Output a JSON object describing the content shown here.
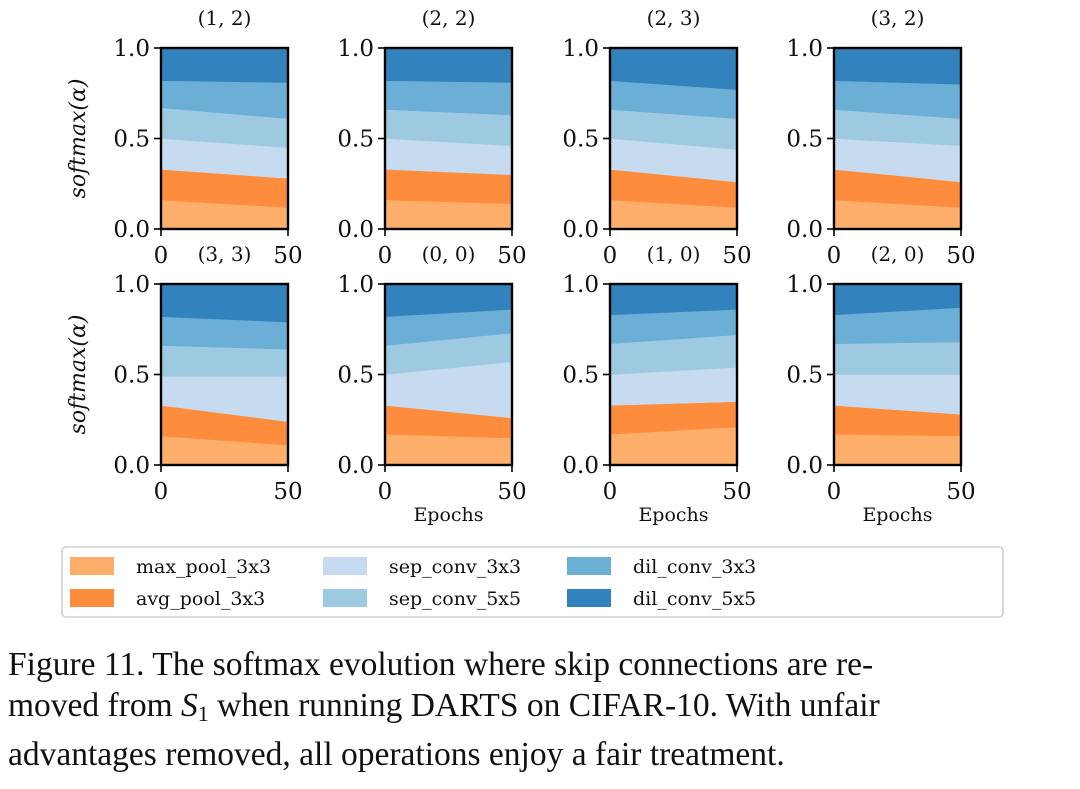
{
  "figure_caption": {
    "line1": "Figure 11. The softmax evolution where skip connections are re-",
    "line2_pre": "moved from ",
    "symbol": "S",
    "subscript": "1",
    "line2_post": " when running DARTS on CIFAR-10. With unfair",
    "line3": "advantages removed, all operations enjoy a fair treatment."
  },
  "legend": [
    {
      "name": "max_pool_3x3",
      "color": "#fdae6b"
    },
    {
      "name": "avg_pool_3x3",
      "color": "#fd8d3c"
    },
    {
      "name": "sep_conv_3x3",
      "color": "#c6dbef"
    },
    {
      "name": "sep_conv_5x5",
      "color": "#9ecae1"
    },
    {
      "name": "dil_conv_3x3",
      "color": "#6baed6"
    },
    {
      "name": "dil_conv_5x5",
      "color": "#3182bd"
    }
  ],
  "chart_data": [
    {
      "type": "area",
      "stacked": true,
      "title": "(1, 2)",
      "xlabel": "",
      "ylabel": "softmax(α)",
      "xlim": [
        0,
        50
      ],
      "ylim": [
        0,
        1
      ],
      "xticks": [
        "0",
        "50"
      ],
      "yticks": [
        "0.0",
        "0.5",
        "1.0"
      ],
      "x": [
        0,
        50
      ],
      "series": [
        {
          "name": "max_pool_3x3",
          "values": [
            0.16,
            0.12
          ]
        },
        {
          "name": "avg_pool_3x3",
          "values": [
            0.17,
            0.16
          ]
        },
        {
          "name": "sep_conv_3x3",
          "values": [
            0.17,
            0.17
          ]
        },
        {
          "name": "sep_conv_5x5",
          "values": [
            0.17,
            0.16
          ]
        },
        {
          "name": "dil_conv_3x3",
          "values": [
            0.15,
            0.2
          ]
        },
        {
          "name": "dil_conv_5x5",
          "values": [
            0.18,
            0.19
          ]
        }
      ]
    },
    {
      "type": "area",
      "stacked": true,
      "title": "(2, 2)",
      "xlabel": "",
      "ylabel": "",
      "xlim": [
        0,
        50
      ],
      "ylim": [
        0,
        1
      ],
      "xticks": [
        "0",
        "50"
      ],
      "yticks": [
        "0.0",
        "0.5",
        "1.0"
      ],
      "x": [
        0,
        50
      ],
      "series": [
        {
          "name": "max_pool_3x3",
          "values": [
            0.16,
            0.14
          ]
        },
        {
          "name": "avg_pool_3x3",
          "values": [
            0.17,
            0.16
          ]
        },
        {
          "name": "sep_conv_3x3",
          "values": [
            0.17,
            0.16
          ]
        },
        {
          "name": "sep_conv_5x5",
          "values": [
            0.16,
            0.17
          ]
        },
        {
          "name": "dil_conv_3x3",
          "values": [
            0.16,
            0.18
          ]
        },
        {
          "name": "dil_conv_5x5",
          "values": [
            0.18,
            0.19
          ]
        }
      ]
    },
    {
      "type": "area",
      "stacked": true,
      "title": "(2, 3)",
      "xlabel": "",
      "ylabel": "",
      "xlim": [
        0,
        50
      ],
      "ylim": [
        0,
        1
      ],
      "xticks": [
        "0",
        "50"
      ],
      "yticks": [
        "0.0",
        "0.5",
        "1.0"
      ],
      "x": [
        0,
        50
      ],
      "series": [
        {
          "name": "max_pool_3x3",
          "values": [
            0.16,
            0.12
          ]
        },
        {
          "name": "avg_pool_3x3",
          "values": [
            0.17,
            0.14
          ]
        },
        {
          "name": "sep_conv_3x3",
          "values": [
            0.17,
            0.18
          ]
        },
        {
          "name": "sep_conv_5x5",
          "values": [
            0.16,
            0.17
          ]
        },
        {
          "name": "dil_conv_3x3",
          "values": [
            0.16,
            0.16
          ]
        },
        {
          "name": "dil_conv_5x5",
          "values": [
            0.18,
            0.23
          ]
        }
      ]
    },
    {
      "type": "area",
      "stacked": true,
      "title": "(3, 2)",
      "xlabel": "",
      "ylabel": "",
      "xlim": [
        0,
        50
      ],
      "ylim": [
        0,
        1
      ],
      "xticks": [
        "0",
        "50"
      ],
      "yticks": [
        "0.0",
        "0.5",
        "1.0"
      ],
      "x": [
        0,
        50
      ],
      "series": [
        {
          "name": "max_pool_3x3",
          "values": [
            0.16,
            0.12
          ]
        },
        {
          "name": "avg_pool_3x3",
          "values": [
            0.17,
            0.14
          ]
        },
        {
          "name": "sep_conv_3x3",
          "values": [
            0.17,
            0.2
          ]
        },
        {
          "name": "sep_conv_5x5",
          "values": [
            0.16,
            0.15
          ]
        },
        {
          "name": "dil_conv_3x3",
          "values": [
            0.16,
            0.19
          ]
        },
        {
          "name": "dil_conv_5x5",
          "values": [
            0.18,
            0.2
          ]
        }
      ]
    },
    {
      "type": "area",
      "stacked": true,
      "title": "(3, 3)",
      "xlabel": "",
      "ylabel": "softmax(α)",
      "xlim": [
        0,
        50
      ],
      "ylim": [
        0,
        1
      ],
      "xticks": [
        "0",
        "50"
      ],
      "yticks": [
        "0.0",
        "0.5",
        "1.0"
      ],
      "x": [
        0,
        50
      ],
      "series": [
        {
          "name": "max_pool_3x3",
          "values": [
            0.16,
            0.11
          ]
        },
        {
          "name": "avg_pool_3x3",
          "values": [
            0.17,
            0.13
          ]
        },
        {
          "name": "sep_conv_3x3",
          "values": [
            0.16,
            0.25
          ]
        },
        {
          "name": "sep_conv_5x5",
          "values": [
            0.17,
            0.15
          ]
        },
        {
          "name": "dil_conv_3x3",
          "values": [
            0.16,
            0.15
          ]
        },
        {
          "name": "dil_conv_5x5",
          "values": [
            0.18,
            0.21
          ]
        }
      ]
    },
    {
      "type": "area",
      "stacked": true,
      "title": "(0, 0)",
      "xlabel": "Epochs",
      "ylabel": "",
      "xlim": [
        0,
        50
      ],
      "ylim": [
        0,
        1
      ],
      "xticks": [
        "0",
        "50"
      ],
      "yticks": [
        "0.0",
        "0.5",
        "1.0"
      ],
      "x": [
        0,
        50
      ],
      "series": [
        {
          "name": "max_pool_3x3",
          "values": [
            0.17,
            0.15
          ]
        },
        {
          "name": "avg_pool_3x3",
          "values": [
            0.16,
            0.11
          ]
        },
        {
          "name": "sep_conv_3x3",
          "values": [
            0.17,
            0.31
          ]
        },
        {
          "name": "sep_conv_5x5",
          "values": [
            0.16,
            0.16
          ]
        },
        {
          "name": "dil_conv_3x3",
          "values": [
            0.16,
            0.13
          ]
        },
        {
          "name": "dil_conv_5x5",
          "values": [
            0.18,
            0.14
          ]
        }
      ]
    },
    {
      "type": "area",
      "stacked": true,
      "title": "(1, 0)",
      "xlabel": "Epochs",
      "ylabel": "",
      "xlim": [
        0,
        50
      ],
      "ylim": [
        0,
        1
      ],
      "xticks": [
        "0",
        "50"
      ],
      "yticks": [
        "0.0",
        "0.5",
        "1.0"
      ],
      "x": [
        0,
        50
      ],
      "series": [
        {
          "name": "max_pool_3x3",
          "values": [
            0.17,
            0.21
          ]
        },
        {
          "name": "avg_pool_3x3",
          "values": [
            0.16,
            0.14
          ]
        },
        {
          "name": "sep_conv_3x3",
          "values": [
            0.17,
            0.19
          ]
        },
        {
          "name": "sep_conv_5x5",
          "values": [
            0.17,
            0.18
          ]
        },
        {
          "name": "dil_conv_3x3",
          "values": [
            0.16,
            0.14
          ]
        },
        {
          "name": "dil_conv_5x5",
          "values": [
            0.17,
            0.14
          ]
        }
      ]
    },
    {
      "type": "area",
      "stacked": true,
      "title": "(2, 0)",
      "xlabel": "Epochs",
      "ylabel": "",
      "xlim": [
        0,
        50
      ],
      "ylim": [
        0,
        1
      ],
      "xticks": [
        "0",
        "50"
      ],
      "yticks": [
        "0.0",
        "0.5",
        "1.0"
      ],
      "x": [
        0,
        50
      ],
      "series": [
        {
          "name": "max_pool_3x3",
          "values": [
            0.17,
            0.16
          ]
        },
        {
          "name": "avg_pool_3x3",
          "values": [
            0.16,
            0.12
          ]
        },
        {
          "name": "sep_conv_3x3",
          "values": [
            0.17,
            0.22
          ]
        },
        {
          "name": "sep_conv_5x5",
          "values": [
            0.17,
            0.18
          ]
        },
        {
          "name": "dil_conv_3x3",
          "values": [
            0.16,
            0.19
          ]
        },
        {
          "name": "dil_conv_5x5",
          "values": [
            0.17,
            0.13
          ]
        }
      ]
    }
  ]
}
